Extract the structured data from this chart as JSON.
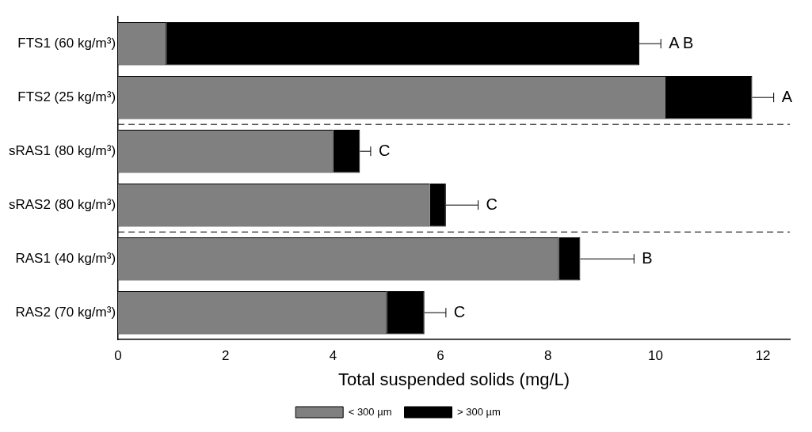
{
  "chart_data": {
    "type": "bar",
    "orientation": "horizontal",
    "stacked": true,
    "xlabel": "Total suspended solids (mg/L)",
    "categories": [
      "FTS1 (60 kg/m³)",
      "FTS2 (25 kg/m³)",
      "sRAS1 (80 kg/m³)",
      "sRAS2 (80 kg/m³)",
      "RAS1 (40 kg/m³)",
      "RAS2 (70 kg/m³)"
    ],
    "series": [
      {
        "name": "< 300 µm",
        "color": "#808080",
        "values": [
          0.9,
          10.2,
          4.0,
          5.8,
          8.2,
          5.0
        ]
      },
      {
        "name": "> 300 µm",
        "color": "#000000",
        "values": [
          8.8,
          1.6,
          0.5,
          0.3,
          0.4,
          0.7
        ],
        "errors": [
          [
            9.7,
            10.1
          ],
          [
            11.8,
            12.2
          ],
          [
            4.5,
            4.7
          ],
          [
            6.1,
            6.7
          ],
          [
            8.6,
            9.6
          ],
          [
            5.7,
            6.1
          ]
        ]
      }
    ],
    "xlim": [
      0,
      12.5
    ],
    "xticks": [
      0,
      2,
      4,
      6,
      8,
      10,
      12
    ],
    "grid": false,
    "legend": "bottom",
    "annotations": [
      "A B",
      "A",
      "C",
      "C",
      "B",
      "C"
    ]
  }
}
